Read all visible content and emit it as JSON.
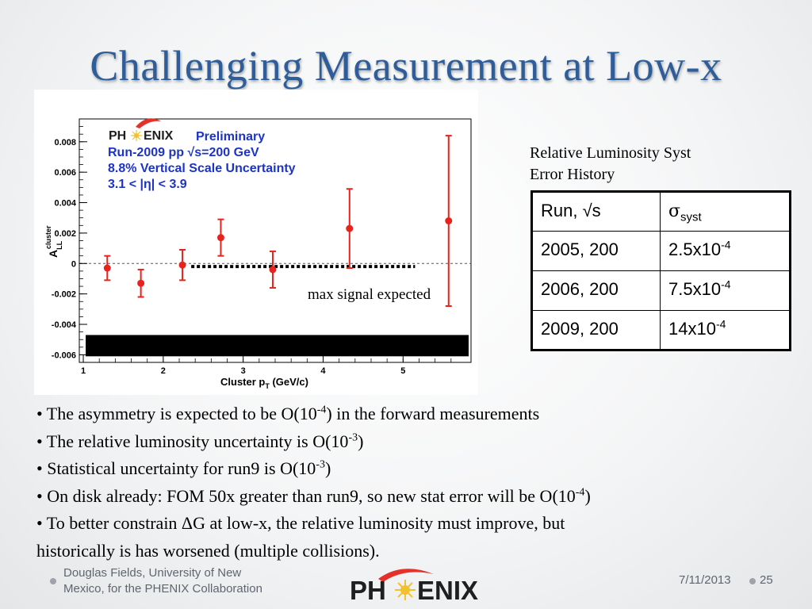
{
  "slide": {
    "title": "Challenging Measurement at Low-x"
  },
  "table": {
    "caption_line1": "Relative Luminosity Syst",
    "caption_line2": "Error History",
    "header": [
      "Run, √s",
      "σ",
      "syst"
    ],
    "rows": [
      {
        "run": "2005, 200",
        "mant": "2.5x10",
        "exp": "-4"
      },
      {
        "run": "2006, 200",
        "mant": "7.5x10",
        "exp": "-4"
      },
      {
        "run": "2009, 200",
        "mant": "14x10",
        "exp": "-4"
      }
    ]
  },
  "bullets": {
    "b1_pre": "• The asymmetry is expected to be O(10",
    "b1_sup": "-4",
    "b1_post": ") in the forward measurements",
    "b2_pre": "• The relative luminosity uncertainty is O(10",
    "b2_sup": "-3",
    "b2_post": ")",
    "b3_pre": "• Statistical uncertainty for run9 is O(10",
    "b3_sup": "-3",
    "b3_post": ")",
    "b4_pre": "• On disk already: FOM 50x greater than run9, so new stat error will be  O(10",
    "b4_sup": "-4",
    "b4_post": ")",
    "b5_line1": "• To better constrain ΔG at low-x, the relative luminosity must improve, but",
    "b5_line2": "historically is has worsened (multiple collisions)."
  },
  "footer": {
    "author_line1": "Douglas Fields, University of New",
    "author_line2": "Mexico, for the PHENIX Collaboration",
    "date": "7/11/2013",
    "page": "25",
    "logo_text_left": "PH",
    "logo_text_right": "ENIX"
  },
  "chart_data": {
    "type": "scatter",
    "legend_lines": [
      {
        "text": "Preliminary"
      },
      {
        "text": "Run-2009 pp √s=200 GeV"
      },
      {
        "text": "8.8% Vertical Scale Uncertainty"
      },
      {
        "text": "3.1 < |η| < 3.9"
      }
    ],
    "logo_left": "PH",
    "logo_right": "ENIX",
    "xlabel": "Cluster p",
    "xlabel_sub": "T",
    "xlabel_unit": " (GeV/c)",
    "ylabel": "A",
    "ylabel_sub": "LL",
    "ylabel_sup": "cluster",
    "xlim": [
      0.95,
      5.85
    ],
    "ylim": [
      -0.0065,
      0.0095
    ],
    "xticks": [
      {
        "v": 1,
        "label": "1"
      },
      {
        "v": 2,
        "label": "2"
      },
      {
        "v": 3,
        "label": "3"
      },
      {
        "v": 4,
        "label": "4"
      },
      {
        "v": 5,
        "label": "5"
      }
    ],
    "yticks": [
      {
        "v": 0.008,
        "label": "0.008"
      },
      {
        "v": 0.006,
        "label": "0.006"
      },
      {
        "v": 0.004,
        "label": "0.004"
      },
      {
        "v": 0.002,
        "label": "0.002"
      },
      {
        "v": 0,
        "label": "0"
      },
      {
        "v": -0.002,
        "label": "-0.002"
      },
      {
        "v": -0.004,
        "label": "-0.004"
      },
      {
        "v": -0.006,
        "label": "-0.006"
      }
    ],
    "points": [
      {
        "x": 1.3,
        "y": -0.0003,
        "err": 0.0008
      },
      {
        "x": 1.72,
        "y": -0.0013,
        "err": 0.0009
      },
      {
        "x": 2.24,
        "y": -0.0001,
        "err": 0.001
      },
      {
        "x": 2.72,
        "y": 0.0017,
        "err": 0.0012
      },
      {
        "x": 3.37,
        "y": -0.0004,
        "err": 0.0012
      },
      {
        "x": 4.33,
        "y": 0.0023,
        "err": 0.0026
      },
      {
        "x": 5.57,
        "y": 0.0028,
        "err": 0.0056
      }
    ],
    "expected_signal": {
      "x_from": 2.35,
      "x_to": 5.15,
      "y": -0.0002,
      "label": "max signal expected"
    },
    "scale_band": {
      "x_from": 1.03,
      "x_to": 5.82,
      "y_from": -0.0061,
      "y_to": -0.0047
    },
    "zero_line": 0,
    "colors": {
      "points": "#e8231e",
      "legend": "#1c33c8",
      "logo": "#1f1f1f",
      "band": "#000000"
    }
  }
}
